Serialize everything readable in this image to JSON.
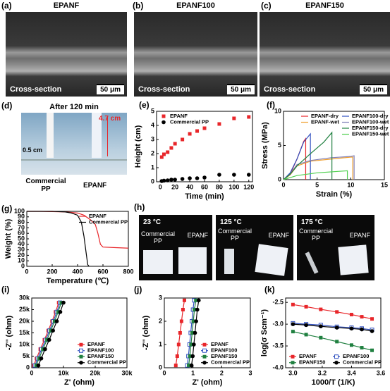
{
  "images": [
    {
      "label": "(a)",
      "title": "EPANF",
      "caption": "Cross-section",
      "scale": "50 μm"
    },
    {
      "label": "(b)",
      "title": "EPANF100",
      "caption": "Cross-section",
      "scale": "50 μm"
    },
    {
      "label": "(c)",
      "title": "EPANF150",
      "caption": "Cross-section",
      "scale": "50 μm"
    }
  ],
  "photo_d": {
    "label": "(d)",
    "title": "After 120 min",
    "height": "4.7 cm",
    "width": "0.5 cm",
    "left": "Commercial PP",
    "right": "EPANF"
  },
  "photo_h": {
    "label": "(h)",
    "panels": [
      {
        "temp": "23 °C",
        "left": "Commercial PP",
        "right": "EPANF"
      },
      {
        "temp": "125 °C",
        "left": "Commercial PP",
        "right": "EPANF"
      },
      {
        "temp": "175 °C",
        "left": "Commercial PP",
        "right": "EPANF"
      }
    ]
  },
  "chart_data": [
    {
      "type": "scatter",
      "label": "(e)",
      "xlabel": "Time (min)",
      "ylabel": "Height (cm)",
      "xlim": [
        -5,
        125
      ],
      "xticks": [
        0,
        20,
        40,
        60,
        80,
        100,
        120
      ],
      "ylim": [
        0,
        5
      ],
      "yticks": [
        0,
        1,
        2,
        3,
        4,
        5
      ],
      "legend": "upper left",
      "series": [
        {
          "name": "EPANF",
          "color": "#e8262a",
          "marker": "square",
          "line": false,
          "x": [
            2,
            5,
            10,
            15,
            20,
            30,
            40,
            50,
            60,
            80,
            100,
            120
          ],
          "values": [
            1.75,
            1.95,
            2.1,
            2.4,
            2.7,
            3.0,
            3.4,
            3.6,
            3.8,
            4.1,
            4.5,
            4.6
          ]
        },
        {
          "name": "Commercial PP",
          "color": "#000000",
          "marker": "circle",
          "line": false,
          "x": [
            2,
            5,
            10,
            15,
            20,
            30,
            40,
            50,
            60,
            80,
            100,
            120
          ],
          "values": [
            0.05,
            0.08,
            0.1,
            0.15,
            0.15,
            0.2,
            0.25,
            0.25,
            0.3,
            0.5,
            0.5,
            0.5
          ]
        }
      ]
    },
    {
      "type": "line",
      "label": "(f)",
      "xlabel": "Strain (%)",
      "ylabel": "Stress (MPa)",
      "xlim": [
        0,
        15
      ],
      "xticks": [
        0,
        5,
        10,
        15
      ],
      "ylim": [
        0,
        10
      ],
      "yticks": [
        0,
        5,
        10
      ],
      "legend": "upper right",
      "series": [
        {
          "name": "EPANF-dry",
          "color": "#e8262a",
          "marker": "none",
          "line": true,
          "x": [
            0,
            1,
            2,
            3,
            3.3,
            3.3
          ],
          "values": [
            0,
            0.8,
            3,
            5.6,
            6,
            0
          ]
        },
        {
          "name": "EPANF-wet",
          "color": "#f0a030",
          "marker": "none",
          "line": true,
          "x": [
            0,
            1,
            2,
            4,
            7,
            10,
            10.3,
            10.3
          ],
          "values": [
            0,
            0.7,
            2,
            2.7,
            3,
            3.3,
            3.3,
            0
          ]
        },
        {
          "name": "EPANF100-dry",
          "color": "#3050c0",
          "marker": "none",
          "line": true,
          "x": [
            0,
            1,
            2,
            3,
            4,
            4
          ],
          "values": [
            0,
            1,
            3,
            5.5,
            6.7,
            0
          ]
        },
        {
          "name": "EPANF100-wet",
          "color": "#8080b8",
          "marker": "none",
          "line": true,
          "x": [
            0,
            1,
            2,
            4,
            7,
            10,
            10.5,
            10.5
          ],
          "values": [
            0,
            0.8,
            2.2,
            2.8,
            3.2,
            3.4,
            3.5,
            0
          ]
        },
        {
          "name": "EPANF150-dry",
          "color": "#208040",
          "marker": "none",
          "line": true,
          "x": [
            0,
            1,
            2,
            4,
            6,
            7.2,
            7.2
          ],
          "values": [
            0,
            0.8,
            2,
            3.8,
            5.5,
            6.9,
            0
          ]
        },
        {
          "name": "EPANF150-wet",
          "color": "#50d050",
          "marker": "none",
          "line": true,
          "x": [
            0,
            1,
            2,
            5,
            9.5,
            9.5
          ],
          "values": [
            0,
            0.3,
            0.6,
            1,
            1.3,
            0
          ]
        }
      ]
    },
    {
      "type": "line",
      "label": "(g)",
      "xlabel": "Temperature (℃)",
      "ylabel": "Weight (%)",
      "xlim": [
        0,
        800
      ],
      "xticks": [
        0,
        200,
        400,
        600,
        800
      ],
      "ylim": [
        0,
        100
      ],
      "yticks": [
        0,
        10,
        20,
        30,
        40,
        50,
        60,
        70,
        80,
        90,
        100
      ],
      "legend": "upper right",
      "series": [
        {
          "name": "EPANF",
          "color": "#e8262a",
          "marker": "none",
          "line": true,
          "x": [
            0,
            100,
            200,
            300,
            400,
            450,
            500,
            540,
            560,
            580,
            600,
            700,
            800
          ],
          "values": [
            100,
            100,
            99.5,
            99,
            97,
            93,
            85,
            76,
            60,
            40,
            35,
            34,
            33
          ]
        },
        {
          "name": "Commercial PP",
          "color": "#000000",
          "marker": "none",
          "line": true,
          "x": [
            0,
            100,
            200,
            300,
            350,
            400,
            430,
            450,
            470,
            480,
            490
          ],
          "values": [
            100,
            100,
            100,
            99,
            97,
            93,
            80,
            55,
            20,
            3,
            0
          ]
        }
      ]
    },
    {
      "type": "line",
      "label": "(i)",
      "xlabel": "Z' (ohm)",
      "ylabel": "-Z'' (ohm)",
      "xlim": [
        0,
        30000
      ],
      "xticks": [
        0,
        {
          "value": 10000,
          "label": "10k"
        },
        {
          "value": 20000,
          "label": "20k"
        },
        {
          "value": 30000,
          "label": "30k"
        }
      ],
      "ylim": [
        0,
        30000
      ],
      "yticks": [
        0,
        {
          "value": 5000,
          "label": "5k"
        },
        {
          "value": 10000,
          "label": "10k"
        },
        {
          "value": 15000,
          "label": "15k"
        },
        {
          "value": 20000,
          "label": "20k"
        },
        {
          "value": 25000,
          "label": "25k"
        },
        {
          "value": 30000,
          "label": "30k"
        }
      ],
      "legend": "lower right",
      "series": [
        {
          "name": "EPANF",
          "color": "#e8262a",
          "marker": "square",
          "line": true,
          "x": [
            600,
            1500,
            2700,
            4000,
            5200,
            6400,
            7500,
            8500
          ],
          "values": [
            1000,
            4000,
            8000,
            12000,
            16000,
            20000,
            24000,
            28000
          ]
        },
        {
          "name": "EPANF100",
          "color": "#3050c0",
          "marker": "open-square",
          "line": true,
          "x": [
            1000,
            1900,
            3100,
            4400,
            5600,
            6800,
            7900,
            8900
          ],
          "values": [
            1000,
            4000,
            8000,
            12000,
            16000,
            20000,
            24000,
            28000
          ]
        },
        {
          "name": "EPANF150",
          "color": "#208040",
          "marker": "square",
          "line": true,
          "x": [
            1400,
            2300,
            3500,
            4800,
            6000,
            7200,
            8300,
            9300
          ],
          "values": [
            1000,
            4000,
            8000,
            12000,
            16000,
            20000,
            24000,
            28000
          ]
        },
        {
          "name": "Commercial PP",
          "color": "#000000",
          "marker": "circle",
          "line": true,
          "x": [
            2100,
            3000,
            4200,
            5500,
            6700,
            7900,
            9000,
            10000
          ],
          "values": [
            1000,
            4000,
            8000,
            12000,
            16000,
            20000,
            24000,
            28000
          ]
        }
      ]
    },
    {
      "type": "line",
      "label": "(j)",
      "xlabel": "Z' (ohm)",
      "ylabel": "-Z'' (ohm)",
      "xlim": [
        0,
        3
      ],
      "xticks": [
        0,
        1,
        2,
        3
      ],
      "ylim": [
        0,
        3
      ],
      "yticks": [
        0,
        1,
        2,
        3
      ],
      "legend": "lower right",
      "series": [
        {
          "name": "EPANF",
          "color": "#e8262a",
          "marker": "square",
          "line": true,
          "x": [
            0.4,
            0.45,
            0.5,
            0.55,
            0.6,
            0.65,
            0.7
          ],
          "values": [
            0.1,
            0.5,
            1,
            1.5,
            2,
            2.5,
            2.9
          ]
        },
        {
          "name": "EPANF100",
          "color": "#3050c0",
          "marker": "open-square",
          "line": true,
          "x": [
            0.8,
            0.84,
            0.88,
            0.92,
            0.96,
            1.0,
            1.04
          ],
          "values": [
            0.1,
            0.5,
            1,
            1.5,
            2,
            2.5,
            2.9
          ]
        },
        {
          "name": "EPANF150",
          "color": "#208040",
          "marker": "square",
          "line": true,
          "x": [
            0.85,
            0.89,
            0.93,
            0.97,
            1.01,
            1.05,
            1.1
          ],
          "values": [
            0.1,
            0.5,
            1,
            1.5,
            2,
            2.5,
            2.9
          ]
        },
        {
          "name": "Commercial PP",
          "color": "#000000",
          "marker": "circle",
          "line": true,
          "x": [
            0.95,
            0.99,
            1.03,
            1.07,
            1.11,
            1.15,
            1.2
          ],
          "values": [
            0.1,
            0.5,
            1,
            1.5,
            2,
            2.5,
            2.9
          ]
        }
      ]
    },
    {
      "type": "line",
      "label": "(k)",
      "xlabel": "1000/T (1/K)",
      "ylabel": "log(σ Scm⁻¹)",
      "xlim": [
        2.95,
        3.6
      ],
      "xticks": [
        {
          "value": 3,
          "label": "3.0"
        },
        3.2,
        3.4,
        3.6
      ],
      "ylim": [
        -4.0,
        -2.4
      ],
      "yticks": [
        -2.5,
        {
          "value": -3,
          "label": "-3.0"
        },
        -3.5,
        {
          "value": -4,
          "label": "-4.0"
        }
      ],
      "legend": "lower left",
      "series": [
        {
          "name": "EPANF",
          "color": "#e8262a",
          "marker": "square",
          "line": true,
          "x": [
            3.0,
            3.09,
            3.19,
            3.3,
            3.4,
            3.47,
            3.54
          ],
          "values": [
            -2.55,
            -2.6,
            -2.66,
            -2.72,
            -2.78,
            -2.83,
            -2.88
          ]
        },
        {
          "name": "EPANF100",
          "color": "#3050c0",
          "marker": "open-square",
          "line": true,
          "x": [
            3.0,
            3.09,
            3.19,
            3.3,
            3.4,
            3.47,
            3.54
          ],
          "values": [
            -2.98,
            -3.0,
            -3.02,
            -3.06,
            -3.08,
            -3.1,
            -3.13
          ]
        },
        {
          "name": "EPANF150",
          "color": "#208040",
          "marker": "square",
          "line": true,
          "x": [
            3.0,
            3.09,
            3.19,
            3.3,
            3.4,
            3.47,
            3.54
          ],
          "values": [
            -3.17,
            -3.24,
            -3.31,
            -3.4,
            -3.48,
            -3.54,
            -3.6
          ]
        },
        {
          "name": "Commercial PP",
          "color": "#000000",
          "marker": "circle",
          "line": true,
          "x": [
            3.0,
            3.09,
            3.19,
            3.3,
            3.4,
            3.47,
            3.54
          ],
          "values": [
            -3.0,
            -3.02,
            -3.05,
            -3.08,
            -3.1,
            -3.12,
            -3.16
          ]
        }
      ]
    }
  ]
}
